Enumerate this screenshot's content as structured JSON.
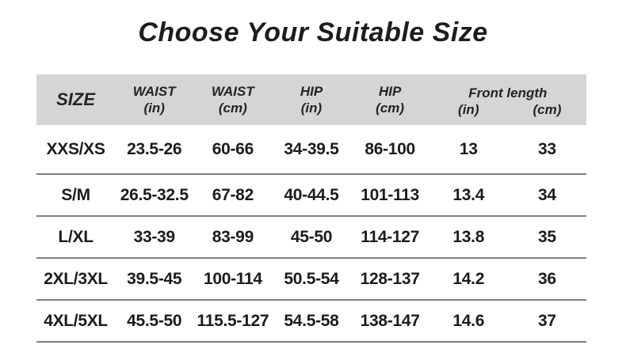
{
  "title": "Choose Your Suitable Size",
  "colors": {
    "header_background": "#d5d5d5",
    "row_divider": "#7f7f7f",
    "text": "#1c1c1c",
    "page_background": "#ffffff"
  },
  "chart_data": {
    "type": "table",
    "title": "Choose Your Suitable Size",
    "columns": [
      "SIZE",
      "WAIST (in)",
      "WAIST (cm)",
      "HIP (in)",
      "HIP (cm)",
      "Front length (in)",
      "Front length (cm)"
    ],
    "rows": [
      [
        "XXS/XS",
        "23.5-26",
        "60-66",
        "34-39.5",
        "86-100",
        "13",
        "33"
      ],
      [
        "S/M",
        "26.5-32.5",
        "67-82",
        "40-44.5",
        "101-113",
        "13.4",
        "34"
      ],
      [
        "L/XL",
        "33-39",
        "83-99",
        "45-50",
        "114-127",
        "13.8",
        "35"
      ],
      [
        "2XL/3XL",
        "39.5-45",
        "100-114",
        "50.5-54",
        "128-137",
        "14.2",
        "36"
      ],
      [
        "4XL/5XL",
        "45.5-50",
        "115.5-127",
        "54.5-58",
        "138-147",
        "14.6",
        "37"
      ]
    ]
  },
  "table": {
    "header": {
      "size_label": "SIZE",
      "waist_in_label": "WAIST",
      "waist_in_unit": "(in)",
      "waist_cm_label": "WAIST",
      "waist_cm_unit": "(cm)",
      "hip_in_label": "HIP",
      "hip_in_unit": "(in)",
      "hip_cm_label": "HIP",
      "hip_cm_unit": "(cm)",
      "front_length_label": "Front length",
      "front_length_in_unit": "(in)",
      "front_length_cm_unit": "(cm)"
    },
    "rows": [
      {
        "size": "XXS/XS",
        "waist_in": "23.5-26",
        "waist_cm": "60-66",
        "hip_in": "34-39.5",
        "hip_cm": "86-100",
        "front_in": "13",
        "front_cm": "33"
      },
      {
        "size": "S/M",
        "waist_in": "26.5-32.5",
        "waist_cm": "67-82",
        "hip_in": "40-44.5",
        "hip_cm": "101-113",
        "front_in": "13.4",
        "front_cm": "34"
      },
      {
        "size": "L/XL",
        "waist_in": "33-39",
        "waist_cm": "83-99",
        "hip_in": "45-50",
        "hip_cm": "114-127",
        "front_in": "13.8",
        "front_cm": "35"
      },
      {
        "size": "2XL/3XL",
        "waist_in": "39.5-45",
        "waist_cm": "100-114",
        "hip_in": "50.5-54",
        "hip_cm": "128-137",
        "front_in": "14.2",
        "front_cm": "36"
      },
      {
        "size": "4XL/5XL",
        "waist_in": "45.5-50",
        "waist_cm": "115.5-127",
        "hip_in": "54.5-58",
        "hip_cm": "138-147",
        "front_in": "14.6",
        "front_cm": "37"
      }
    ]
  }
}
